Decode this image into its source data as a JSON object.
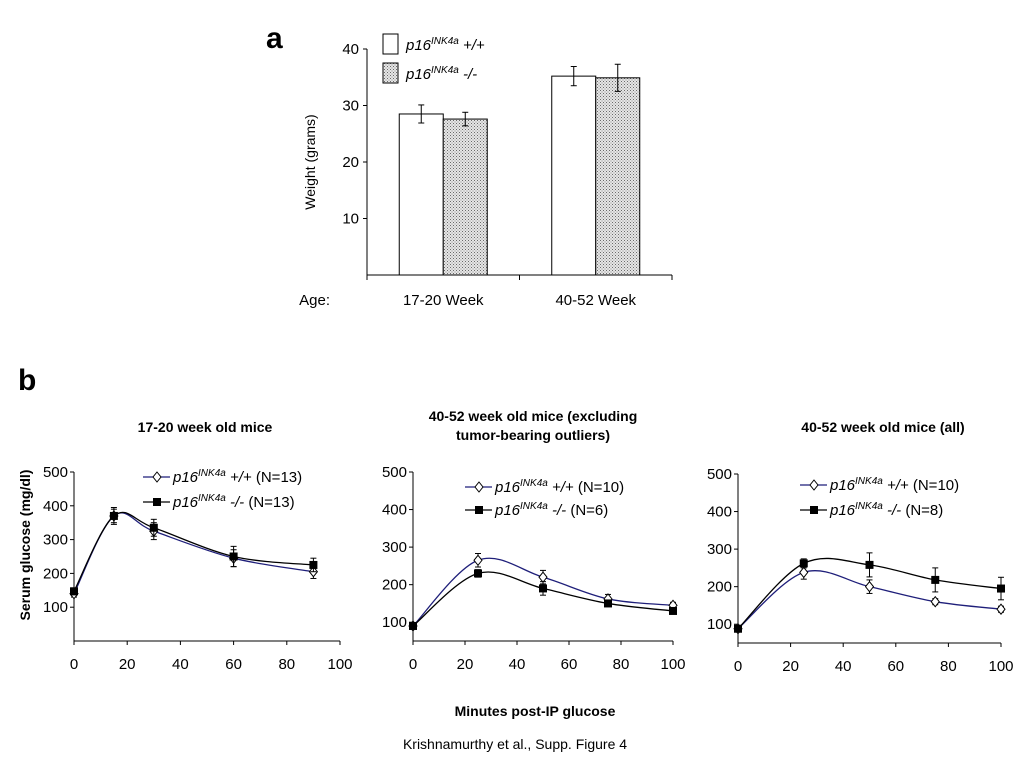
{
  "figure": {
    "panel_a_label": "a",
    "panel_b_label": "b",
    "xaxis_title": "Minutes post-IP glucose",
    "caption": "Krishnamurthy et al., Supp. Figure 4"
  },
  "legend_names": {
    "wt": {
      "gene": "p16",
      "sup": "INK4a",
      "geno": " +/+"
    },
    "ko": {
      "gene": "p16",
      "sup": "INK4a",
      "geno": " -/-"
    }
  },
  "colors": {
    "wt_line": "#1f1f7a",
    "ko_line": "#000000",
    "bar_wt_fill": "#ffffff",
    "bar_ko_fill": "#cfcfcf"
  },
  "chart_data": [
    {
      "type": "bar",
      "panel": "a",
      "title": "",
      "xlabel": "Age:",
      "ylabel": "Weight (grams)",
      "categories": [
        "17-20 Week",
        "40-52 Week"
      ],
      "yticks": [
        10,
        20,
        30,
        40
      ],
      "ylim": [
        0,
        40
      ],
      "series": [
        {
          "key": "wt",
          "values": [
            28.5,
            35.2
          ],
          "errors": [
            1.6,
            1.7
          ]
        },
        {
          "key": "ko",
          "values": [
            27.6,
            34.9
          ],
          "errors": [
            1.2,
            2.4
          ]
        }
      ]
    },
    {
      "type": "line",
      "panel": "b1",
      "title": [
        "17-20 week old mice"
      ],
      "ylabel": "Serum glucose (mg/dl)",
      "x": [
        0,
        15,
        30,
        60,
        90
      ],
      "xticks": [
        0,
        20,
        40,
        60,
        80,
        100
      ],
      "yticks": [
        100,
        200,
        300,
        400,
        500
      ],
      "ylim": [
        0,
        500
      ],
      "xlim": [
        0,
        100
      ],
      "series": [
        {
          "key": "wt",
          "n": "(N=13)",
          "values": [
            140,
            370,
            325,
            245,
            205
          ],
          "errors": [
            10,
            25,
            25,
            25,
            20
          ]
        },
        {
          "key": "ko",
          "n": "(N=13)",
          "values": [
            147,
            370,
            335,
            250,
            225
          ],
          "errors": [
            10,
            20,
            25,
            30,
            20
          ]
        }
      ]
    },
    {
      "type": "line",
      "panel": "b2",
      "title": [
        "40-52 week old mice (excluding",
        "tumor-bearing outliers)"
      ],
      "ylabel": "",
      "x": [
        0,
        25,
        50,
        75,
        100
      ],
      "xticks": [
        0,
        20,
        40,
        60,
        80,
        100
      ],
      "yticks": [
        100,
        200,
        300,
        400,
        500
      ],
      "ylim": [
        50,
        500
      ],
      "xlim": [
        0,
        100
      ],
      "series": [
        {
          "key": "wt",
          "n": "(N=10)",
          "values": [
            90,
            265,
            220,
            162,
            145
          ],
          "errors": [
            8,
            18,
            18,
            12,
            8
          ]
        },
        {
          "key": "ko",
          "n": "(N=6)",
          "values": [
            90,
            230,
            190,
            150,
            130
          ],
          "errors": [
            8,
            10,
            18,
            8,
            6
          ]
        }
      ]
    },
    {
      "type": "line",
      "panel": "b3",
      "title": [
        "40-52 week old mice (all)"
      ],
      "ylabel": "",
      "x": [
        0,
        25,
        50,
        75,
        100
      ],
      "xticks": [
        0,
        20,
        40,
        60,
        80,
        100
      ],
      "yticks": [
        100,
        200,
        300,
        400,
        500
      ],
      "ylim": [
        50,
        500
      ],
      "xlim": [
        0,
        100
      ],
      "series": [
        {
          "key": "wt",
          "n": "(N=10)",
          "values": [
            88,
            238,
            200,
            160,
            140
          ],
          "errors": [
            8,
            18,
            18,
            8,
            8
          ]
        },
        {
          "key": "ko",
          "n": "(N=8)",
          "values": [
            88,
            262,
            258,
            218,
            195
          ],
          "errors": [
            8,
            12,
            32,
            32,
            30
          ]
        }
      ]
    }
  ]
}
